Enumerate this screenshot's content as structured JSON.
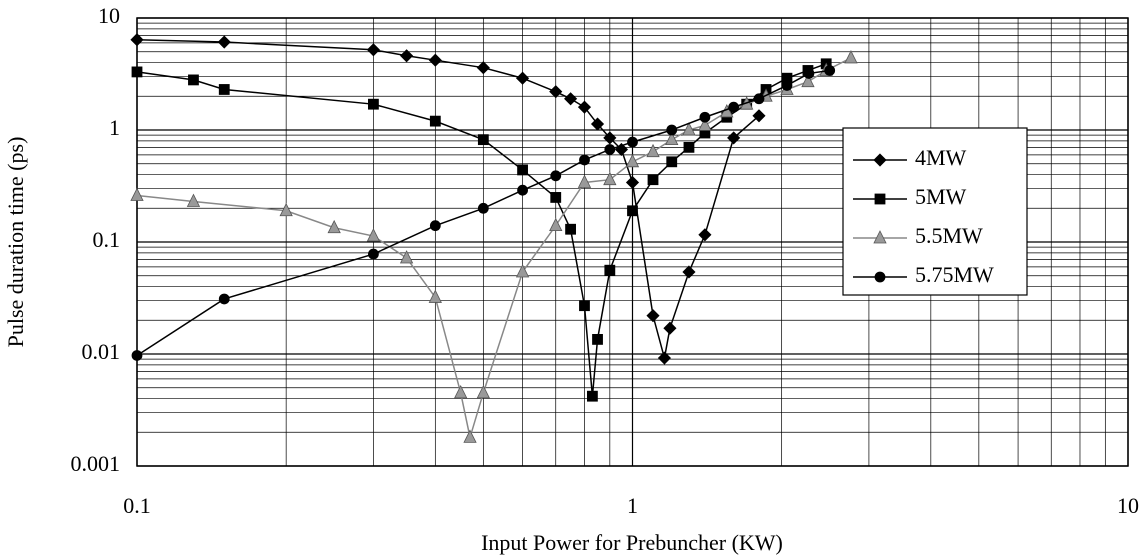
{
  "chart_data": {
    "type": "line",
    "x_label": "Input Power for Prebuncher (KW)",
    "y_label": "Pulse duration time (ps)",
    "xscale": "log",
    "yscale": "log",
    "grid": true,
    "legend": "right",
    "xlim": [
      0.1,
      10
    ],
    "xticks": [
      0.1,
      1,
      10
    ],
    "ylim": [
      0.001,
      10
    ],
    "yticks": [
      0.001,
      0.01,
      0.1,
      1,
      10
    ],
    "series": [
      {
        "name": "4MW",
        "color": "#000000",
        "marker": "diamond",
        "x": [
          0.1,
          0.15,
          0.3,
          0.35,
          0.4,
          0.5,
          0.6,
          0.7,
          0.75,
          0.8,
          0.85,
          0.9,
          0.95,
          1,
          1.1,
          1.16,
          1.19,
          1.3,
          1.4,
          1.6,
          1.8
        ],
        "values": [
          6.4,
          6.1,
          5.2,
          4.6,
          4.2,
          3.6,
          2.9,
          2.2,
          1.9,
          1.6,
          1.13,
          0.85,
          0.67,
          0.34,
          0.022,
          0.0092,
          0.017,
          0.054,
          0.116,
          0.85,
          1.34
        ]
      },
      {
        "name": "5MW",
        "color": "#000000",
        "marker": "square",
        "x": [
          0.1,
          0.13,
          0.15,
          0.3,
          0.4,
          0.5,
          0.6,
          0.7,
          0.75,
          0.8,
          0.83,
          0.85,
          0.9,
          1,
          1.1,
          1.2,
          1.3,
          1.4,
          1.55,
          1.7,
          1.86,
          2.05,
          2.26,
          2.46
        ],
        "values": [
          3.3,
          2.8,
          2.3,
          1.7,
          1.2,
          0.82,
          0.44,
          0.25,
          0.13,
          0.027,
          0.0042,
          0.0135,
          0.056,
          0.19,
          0.36,
          0.52,
          0.7,
          0.94,
          1.3,
          1.7,
          2.3,
          2.9,
          3.4,
          3.9
        ]
      },
      {
        "name": "5.5MW",
        "color": "#999999",
        "marker": "triangle",
        "x": [
          0.1,
          0.13,
          0.2,
          0.25,
          0.3,
          0.35,
          0.4,
          0.45,
          0.47,
          0.5,
          0.6,
          0.7,
          0.8,
          0.9,
          1,
          1.1,
          1.2,
          1.3,
          1.4,
          1.55,
          1.7,
          1.86,
          2.05,
          2.26,
          2.46,
          2.76
        ],
        "values": [
          0.26,
          0.23,
          0.19,
          0.134,
          0.113,
          0.072,
          0.032,
          0.0045,
          0.0018,
          0.0045,
          0.054,
          0.14,
          0.34,
          0.36,
          0.52,
          0.64,
          0.82,
          1.0,
          1.1,
          1.45,
          1.7,
          2.0,
          2.3,
          2.7,
          3.4,
          4.4
        ]
      },
      {
        "name": "5.75MW",
        "color": "#000000",
        "marker": "circle",
        "x": [
          0.1,
          0.15,
          0.3,
          0.4,
          0.5,
          0.6,
          0.7,
          0.8,
          0.9,
          1,
          1.2,
          1.4,
          1.6,
          1.8,
          2.05,
          2.27,
          2.5
        ],
        "values": [
          0.0097,
          0.031,
          0.078,
          0.14,
          0.2,
          0.29,
          0.39,
          0.54,
          0.67,
          0.78,
          1.0,
          1.3,
          1.6,
          1.9,
          2.5,
          3.2,
          3.4
        ]
      }
    ]
  }
}
